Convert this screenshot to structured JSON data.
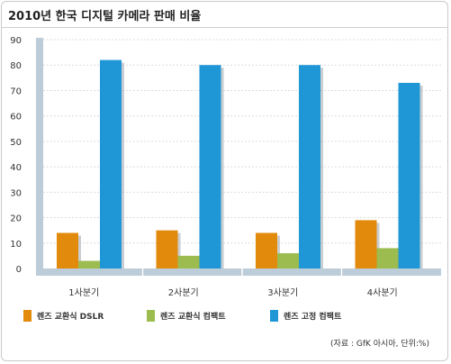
{
  "title": "2010년 한국 디지털 카메라 판매 비율",
  "note": "(자료 : GfK 아시아, 단위:%)",
  "colors": {
    "dslr": "#e28a0c",
    "compact": "#9cbc50",
    "fixed": "#1f97d7",
    "floor": "#bcccd8"
  },
  "chart_data": {
    "type": "bar",
    "title": "2010년 한국 디지털 카메라 판매 비율",
    "categories": [
      "1사분기",
      "2사분기",
      "3사분기",
      "4사분기"
    ],
    "series": [
      {
        "name": "렌즈 교환식 DSLR",
        "values": [
          14,
          15,
          14,
          19
        ]
      },
      {
        "name": "렌즈 교환식 컴팩트",
        "values": [
          3,
          5,
          6,
          8
        ]
      },
      {
        "name": "렌즈 고정 컴팩트",
        "values": [
          82,
          80,
          80,
          73
        ]
      }
    ],
    "ylim": [
      0,
      90
    ],
    "yticks": [
      "0",
      "10",
      "20",
      "30",
      "40",
      "50",
      "60",
      "70",
      "80",
      "90"
    ],
    "grid": true,
    "legend": "bottom"
  }
}
